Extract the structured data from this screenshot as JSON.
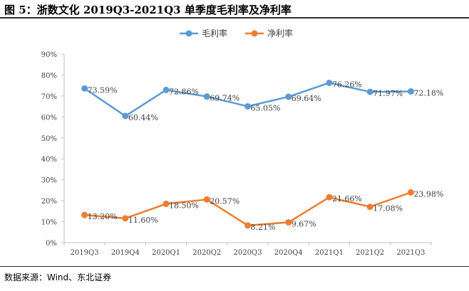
{
  "figure": {
    "title": "图 5：浙数文化 2019Q3-2021Q3 单季度毛利率及净利率",
    "source": "数据来源：Wind、东北证券"
  },
  "chart_data": {
    "type": "line",
    "title": "浙数文化 2019Q3-2021Q3 单季度毛利率及净利率",
    "xlabel": "",
    "ylabel": "",
    "categories": [
      "2019Q3",
      "2019Q4",
      "2020Q1",
      "2020Q2",
      "2020Q3",
      "2020Q4",
      "2021Q1",
      "2021Q2",
      "2021Q3"
    ],
    "ylim": [
      0,
      90
    ],
    "yticks": [
      "0%",
      "10%",
      "20%",
      "30%",
      "40%",
      "50%",
      "60%",
      "70%",
      "80%",
      "90%"
    ],
    "legend_position": "top-center",
    "grid": false,
    "series": [
      {
        "name": "毛利率",
        "color": "#5b9bd5",
        "values": [
          73.59,
          60.44,
          72.86,
          69.74,
          65.05,
          69.64,
          76.26,
          71.97,
          72.18
        ],
        "labels": [
          "73.59%",
          "60.44%",
          "72.86%",
          "69.74%",
          "65.05%",
          "69.64%",
          "76.26%",
          "71.97%",
          "72.18%"
        ]
      },
      {
        "name": "净利率",
        "color": "#ed7d31",
        "values": [
          13.2,
          11.6,
          18.5,
          20.57,
          8.21,
          9.67,
          21.66,
          17.08,
          23.98
        ],
        "labels": [
          "13.20%",
          "11.60%",
          "18.50%",
          "20.57%",
          "8.21%",
          "9.67%",
          "21.66%",
          "17.08%",
          "23.98%"
        ]
      }
    ]
  }
}
